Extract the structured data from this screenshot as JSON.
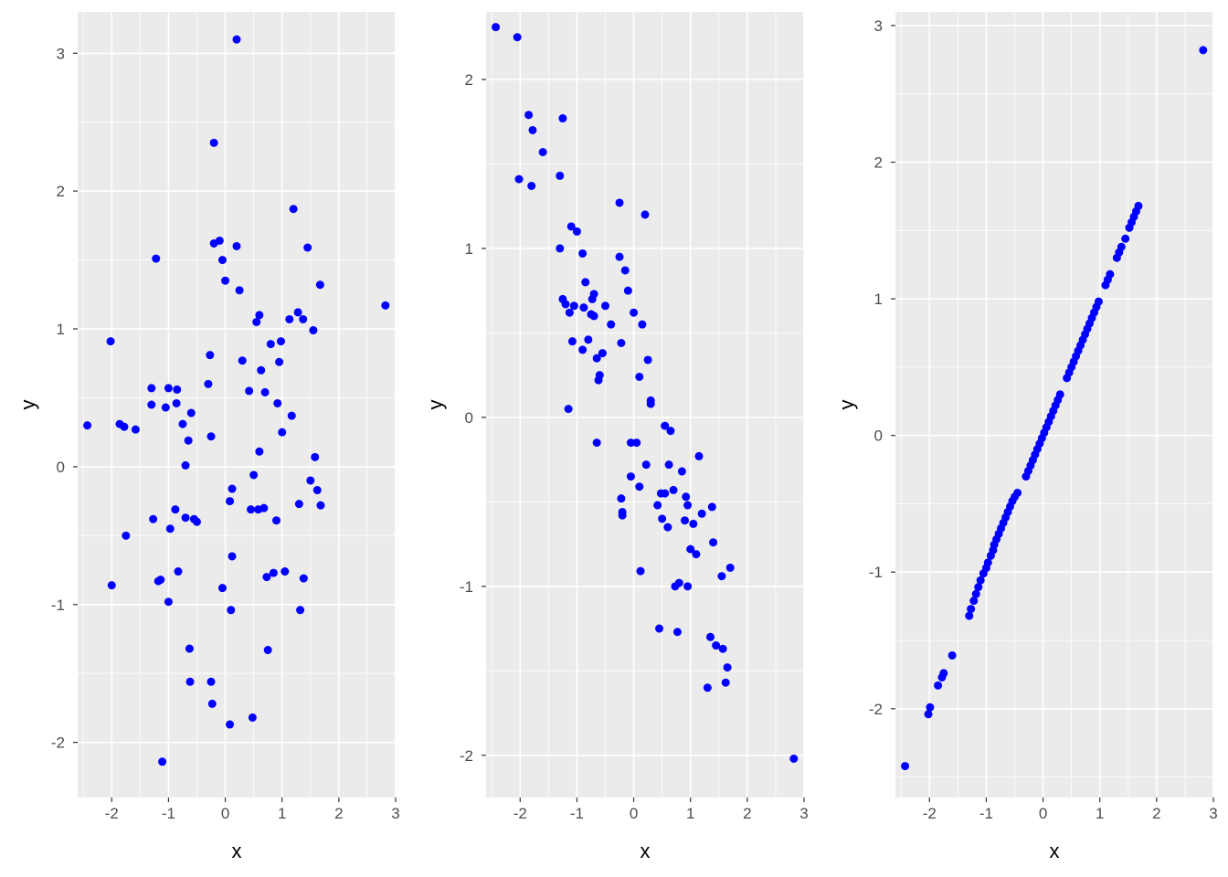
{
  "figure": {
    "background": "#ffffff",
    "panel_background": "#ebebeb",
    "grid_color": "#ffffff",
    "point_color": "#0000ff"
  },
  "chart_data": [
    {
      "type": "scatter",
      "title": "",
      "xlabel": "x",
      "ylabel": "y",
      "xlim": [
        -2.6,
        3.0
      ],
      "ylim": [
        -2.4,
        3.3
      ],
      "xticks": [
        -2,
        -1,
        0,
        1,
        2,
        3
      ],
      "yticks": [
        -2,
        -1,
        0,
        1,
        2,
        3
      ],
      "grid": true,
      "x": [
        -2.43,
        -2.02,
        -2.0,
        -1.86,
        -1.78,
        -1.75,
        -1.58,
        -1.3,
        -1.3,
        -1.27,
        -1.22,
        -1.18,
        -1.14,
        -1.11,
        -1.05,
        -1.0,
        -1.0,
        -0.97,
        -0.88,
        -0.86,
        -0.85,
        -0.83,
        -0.75,
        -0.7,
        -0.7,
        -0.65,
        -0.63,
        -0.62,
        -0.6,
        -0.55,
        -0.5,
        -0.3,
        -0.27,
        -0.25,
        -0.25,
        -0.23,
        -0.2,
        -0.2,
        -0.1,
        -0.05,
        -0.05,
        0.0,
        0.08,
        0.08,
        0.1,
        0.12,
        0.12,
        0.2,
        0.2,
        0.25,
        0.3,
        0.42,
        0.45,
        0.48,
        0.5,
        0.55,
        0.58,
        0.6,
        0.6,
        0.63,
        0.68,
        0.7,
        0.73,
        0.75,
        0.8,
        0.85,
        0.9,
        0.92,
        0.95,
        0.98,
        1.0,
        1.05,
        1.13,
        1.17,
        1.2,
        1.28,
        1.3,
        1.32,
        1.37,
        1.38,
        1.45,
        1.5,
        1.55,
        1.58,
        1.62,
        1.67,
        1.68,
        2.82
      ],
      "y": [
        0.3,
        0.91,
        -0.86,
        0.31,
        0.29,
        -0.5,
        0.27,
        0.57,
        0.45,
        -0.38,
        1.51,
        -0.83,
        -0.82,
        -2.14,
        0.43,
        0.57,
        -0.98,
        -0.45,
        -0.31,
        0.46,
        0.56,
        -0.76,
        0.31,
        -0.37,
        0.01,
        0.19,
        -1.32,
        -1.56,
        0.39,
        -0.38,
        -0.4,
        0.6,
        0.81,
        -1.56,
        0.22,
        -1.72,
        2.35,
        1.62,
        1.64,
        1.5,
        -0.88,
        1.35,
        -1.87,
        -0.25,
        -1.04,
        -0.16,
        -0.65,
        3.1,
        1.6,
        1.28,
        0.77,
        0.55,
        -0.31,
        -1.82,
        -0.06,
        1.05,
        -0.31,
        0.11,
        1.1,
        0.7,
        -0.3,
        0.54,
        -0.8,
        -1.33,
        0.89,
        -0.77,
        -0.39,
        0.46,
        0.76,
        0.91,
        0.25,
        -0.76,
        1.07,
        0.37,
        1.87,
        1.12,
        -0.27,
        -1.04,
        1.07,
        -0.81,
        1.59,
        -0.1,
        0.99,
        0.07,
        -0.17,
        1.32,
        -0.28,
        1.17
      ]
    },
    {
      "type": "scatter",
      "title": "",
      "xlabel": "x",
      "ylabel": "y",
      "xlim": [
        -2.6,
        3.0
      ],
      "ylim": [
        -2.25,
        2.4
      ],
      "xticks": [
        -2,
        -1,
        0,
        1,
        2,
        3
      ],
      "yticks": [
        -2,
        -1,
        0,
        1,
        2
      ],
      "grid": true,
      "x": [
        -2.43,
        -2.05,
        -2.02,
        -1.85,
        -1.8,
        -1.78,
        -1.6,
        -1.3,
        -1.3,
        -1.25,
        -1.25,
        -1.2,
        -1.15,
        -1.13,
        -1.1,
        -1.08,
        -1.05,
        -1.0,
        -0.9,
        -0.9,
        -0.88,
        -0.85,
        -0.8,
        -0.75,
        -0.73,
        -0.7,
        -0.7,
        -0.65,
        -0.65,
        -0.62,
        -0.6,
        -0.55,
        -0.5,
        -0.4,
        -0.25,
        -0.25,
        -0.22,
        -0.22,
        -0.2,
        -0.2,
        -0.15,
        -0.1,
        -0.05,
        -0.05,
        0.0,
        0.05,
        0.1,
        0.1,
        0.12,
        0.15,
        0.2,
        0.22,
        0.25,
        0.3,
        0.3,
        0.42,
        0.45,
        0.48,
        0.5,
        0.55,
        0.55,
        0.6,
        0.62,
        0.65,
        0.7,
        0.73,
        0.77,
        0.8,
        0.85,
        0.9,
        0.92,
        0.95,
        0.95,
        1.0,
        1.05,
        1.1,
        1.15,
        1.2,
        1.3,
        1.35,
        1.38,
        1.4,
        1.45,
        1.55,
        1.57,
        1.62,
        1.65,
        1.7,
        2.82
      ],
      "y": [
        2.31,
        2.25,
        1.41,
        1.79,
        1.37,
        1.7,
        1.57,
        1.43,
        1.0,
        0.7,
        1.77,
        0.67,
        0.05,
        0.62,
        1.13,
        0.45,
        0.66,
        1.1,
        0.97,
        0.4,
        0.65,
        0.8,
        0.46,
        0.61,
        0.7,
        0.73,
        0.6,
        0.35,
        -0.15,
        0.22,
        0.25,
        0.38,
        0.66,
        0.55,
        1.27,
        0.95,
        0.44,
        -0.48,
        -0.56,
        -0.58,
        0.87,
        0.75,
        -0.15,
        -0.35,
        0.62,
        -0.15,
        0.24,
        -0.41,
        -0.91,
        0.55,
        1.2,
        -0.28,
        0.34,
        0.1,
        0.08,
        -0.52,
        -1.25,
        -0.45,
        -0.6,
        -0.05,
        -0.45,
        -0.65,
        -0.28,
        -0.08,
        -0.43,
        -1.0,
        -1.27,
        -0.98,
        -0.32,
        -0.61,
        -0.47,
        -0.52,
        -1.0,
        -0.78,
        -0.63,
        -0.81,
        -0.23,
        -0.57,
        -1.6,
        -1.3,
        -0.53,
        -0.74,
        -1.35,
        -0.94,
        -1.37,
        -1.57,
        -1.48,
        -0.89,
        -2.02
      ]
    },
    {
      "type": "scatter",
      "title": "",
      "xlabel": "x",
      "ylabel": "y",
      "xlim": [
        -2.6,
        3.0
      ],
      "ylim": [
        -2.65,
        3.1
      ],
      "xticks": [
        -2,
        -1,
        0,
        1,
        2,
        3
      ],
      "yticks": [
        -2,
        -1,
        0,
        1,
        2,
        3
      ],
      "grid": true,
      "x": [
        -2.43,
        -2.02,
        -1.99,
        -1.85,
        -1.78,
        -1.75,
        -1.6,
        -1.3,
        -1.27,
        -1.22,
        -1.18,
        -1.14,
        -1.1,
        -1.05,
        -1.0,
        -0.97,
        -0.92,
        -0.88,
        -0.86,
        -0.82,
        -0.78,
        -0.74,
        -0.7,
        -0.66,
        -0.62,
        -0.58,
        -0.54,
        -0.5,
        -0.45,
        -0.3,
        -0.26,
        -0.22,
        -0.18,
        -0.14,
        -0.1,
        -0.06,
        -0.02,
        0.02,
        0.06,
        0.1,
        0.14,
        0.18,
        0.22,
        0.26,
        0.3,
        0.42,
        0.46,
        0.5,
        0.54,
        0.58,
        0.62,
        0.66,
        0.7,
        0.74,
        0.78,
        0.82,
        0.86,
        0.9,
        0.94,
        0.98,
        1.1,
        1.14,
        1.18,
        1.3,
        1.34,
        1.38,
        1.45,
        1.52,
        1.56,
        1.6,
        1.64,
        1.68,
        2.82
      ],
      "y": [
        -2.42,
        -2.04,
        -1.99,
        -1.83,
        -1.77,
        -1.74,
        -1.61,
        -1.32,
        -1.27,
        -1.21,
        -1.16,
        -1.11,
        -1.06,
        -1.01,
        -0.97,
        -0.93,
        -0.88,
        -0.84,
        -0.8,
        -0.76,
        -0.72,
        -0.68,
        -0.64,
        -0.6,
        -0.56,
        -0.52,
        -0.48,
        -0.45,
        -0.42,
        -0.3,
        -0.26,
        -0.22,
        -0.18,
        -0.14,
        -0.1,
        -0.06,
        -0.02,
        0.02,
        0.06,
        0.1,
        0.14,
        0.18,
        0.22,
        0.26,
        0.3,
        0.42,
        0.46,
        0.5,
        0.54,
        0.58,
        0.62,
        0.66,
        0.7,
        0.74,
        0.78,
        0.82,
        0.86,
        0.9,
        0.94,
        0.98,
        1.1,
        1.14,
        1.18,
        1.3,
        1.34,
        1.38,
        1.44,
        1.52,
        1.56,
        1.6,
        1.64,
        1.68,
        2.82
      ]
    }
  ]
}
